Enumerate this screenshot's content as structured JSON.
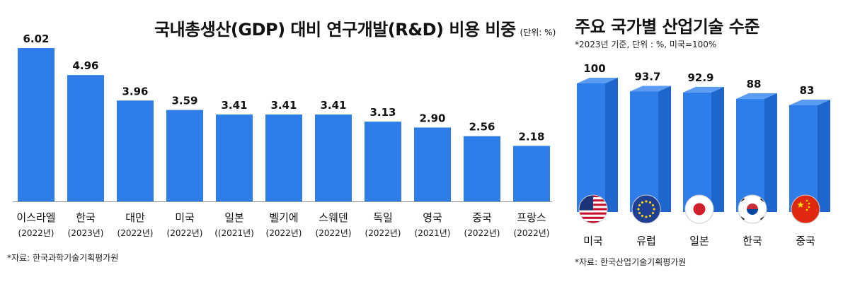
{
  "left_chart": {
    "title": "국내총생산(GDP) 대비 연구개발(R&D) 비용 비중",
    "unit": "(단위: %)",
    "source": "*자료: 한국과학기술기획평가원"
  },
  "right_chart": {
    "title": "주요 국가별 산업기술 수준",
    "subtitle": "*2023년 기준, 단위 : %, 미국=100%",
    "source": "*자료: 한국산업기술기획평가원"
  },
  "colors": {
    "bar": "#2f7de9",
    "bar_side": "#1f66cc",
    "bar_top": "#5a9cf2",
    "axis": "#999999"
  },
  "chart_data": [
    {
      "type": "bar",
      "title": "국내총생산(GDP) 대비 연구개발(R&D) 비용 비중",
      "unit": "%",
      "categories": [
        "이스라엘",
        "한국",
        "대만",
        "미국",
        "일본",
        "벨기에",
        "스웨덴",
        "독일",
        "영국",
        "중국",
        "프랑스"
      ],
      "years": [
        "(2022년)",
        "(2023년)",
        "(2022년)",
        "(2022년)",
        "((2021년)",
        "(2022년)",
        "(2022년)",
        "(2022년)",
        "(2021년)",
        "(2022년)",
        "(2022년)"
      ],
      "values": [
        6.02,
        4.96,
        3.96,
        3.59,
        3.41,
        3.41,
        3.41,
        3.13,
        2.9,
        2.56,
        2.18
      ],
      "value_labels": [
        "6.02",
        "4.96",
        "3.96",
        "3.59",
        "3.41",
        "3.41",
        "3.41",
        "3.13",
        "2.90",
        "2.56",
        "2.18"
      ],
      "ylim": [
        0,
        6.02
      ]
    },
    {
      "type": "bar",
      "title": "주요 국가별 산업기술 수준",
      "unit": "%",
      "categories": [
        "미국",
        "유럽",
        "일본",
        "한국",
        "중국"
      ],
      "values": [
        100,
        93.7,
        92.9,
        88,
        83
      ],
      "value_labels": [
        "100",
        "93.7",
        "92.9",
        "88",
        "83"
      ],
      "flags": [
        "us-flag-icon",
        "eu-flag-icon",
        "japan-flag-icon",
        "korea-flag-icon",
        "china-flag-icon"
      ]
    }
  ]
}
